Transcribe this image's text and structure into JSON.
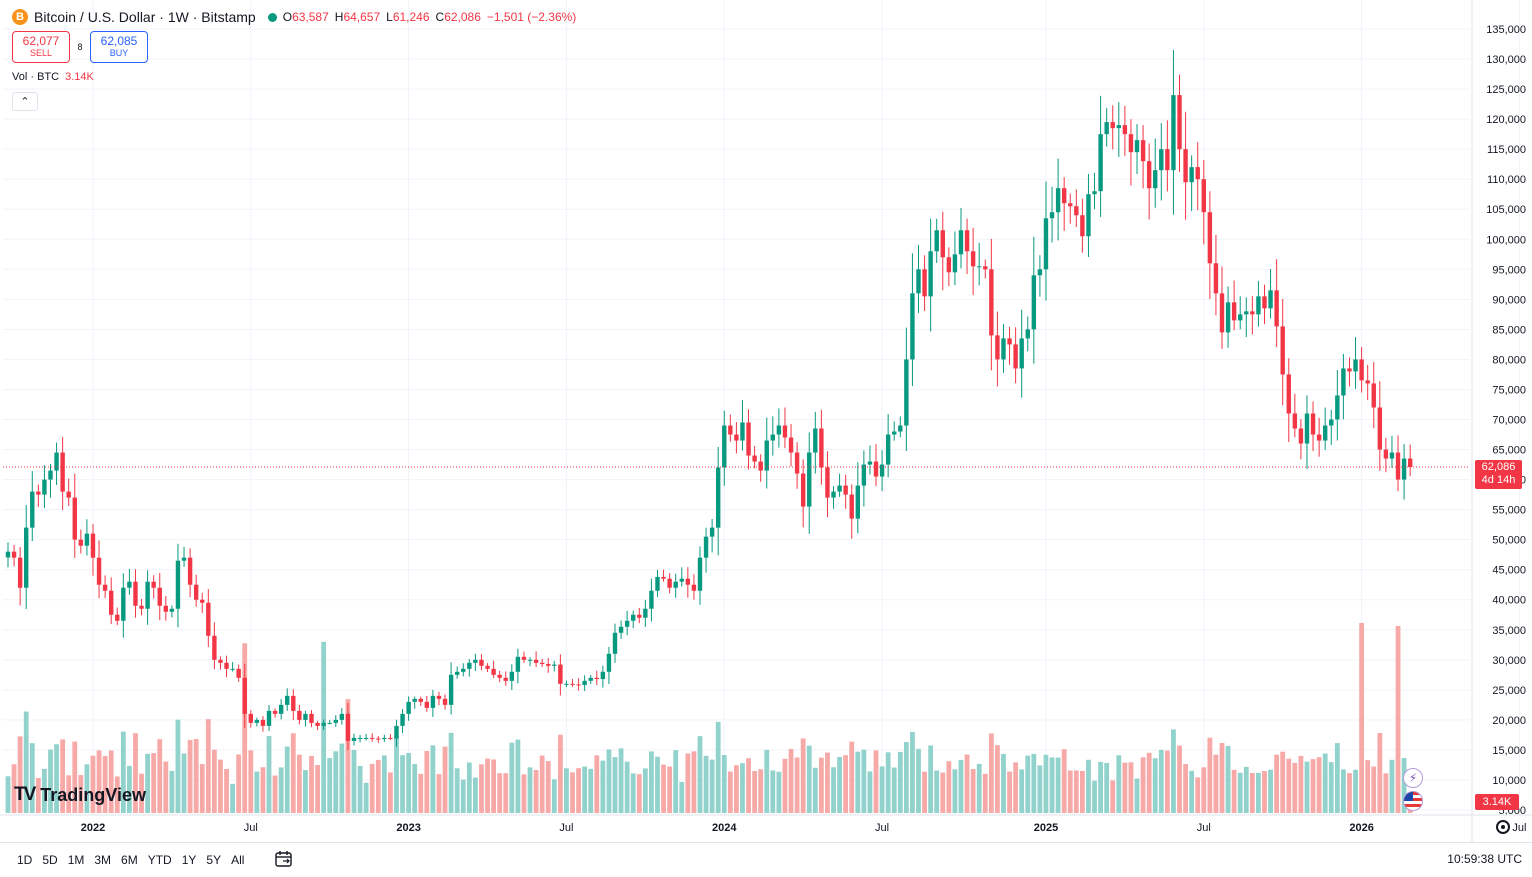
{
  "header": {
    "symbol_icon": "B",
    "title": "Bitcoin / U.S. Dollar · 1W · Bitstamp",
    "ohlc": {
      "o_label": "O",
      "o_value": "63,587",
      "h_label": "H",
      "h_value": "64,657",
      "l_label": "L",
      "l_value": "61,246",
      "c_label": "C",
      "c_value": "62,086",
      "change": "−1,501 (−2.36%)"
    }
  },
  "trade": {
    "sell_price": "62,077",
    "sell_label": "SELL",
    "spread": "8",
    "buy_price": "62,085",
    "buy_label": "BUY"
  },
  "volume_legend": {
    "label": "Vol · BTC",
    "value": "3.14K"
  },
  "logo": {
    "text": "TradingView"
  },
  "price_tag": {
    "price": "62,086",
    "countdown": "4d 14h"
  },
  "volume_tag": "3.14K",
  "toolbar": {
    "ranges": [
      "1D",
      "5D",
      "1M",
      "3M",
      "6M",
      "YTD",
      "1Y",
      "5Y",
      "All"
    ],
    "clock": "10:59:38 UTC"
  },
  "colors": {
    "up": "#089981",
    "down": "#f23645",
    "up_vol": "#92d2cc",
    "down_vol": "#f7a9a7",
    "grid": "#f0f3fa"
  },
  "chart_data": {
    "type": "candlestick",
    "interval": "1W",
    "y_axis": {
      "min": 5000,
      "max": 135000,
      "ticks": [
        "5,000",
        "10,000",
        "15,000",
        "20,000",
        "25,000",
        "30,000",
        "35,000",
        "40,000",
        "45,000",
        "50,000",
        "55,000",
        "60,000",
        "65,000",
        "70,000",
        "75,000",
        "80,000",
        "85,000",
        "90,000",
        "95,000",
        "100,000",
        "105,000",
        "110,000",
        "115,000",
        "120,000",
        "125,000",
        "130,000",
        "135,000"
      ],
      "scale": "linear"
    },
    "x_axis": {
      "ticks": [
        {
          "label": "2022",
          "bold": true,
          "bar": 14
        },
        {
          "label": "Jul",
          "bold": false,
          "bar": 40
        },
        {
          "label": "2023",
          "bold": true,
          "bar": 66
        },
        {
          "label": "Jul",
          "bold": false,
          "bar": 92
        },
        {
          "label": "2024",
          "bold": true,
          "bar": 118
        },
        {
          "label": "Jul",
          "bold": false,
          "bar": 144
        },
        {
          "label": "2025",
          "bold": true,
          "bar": 171
        },
        {
          "label": "Jul",
          "bold": false,
          "bar": 197
        },
        {
          "label": "2026",
          "bold": true,
          "bar": 223
        },
        {
          "label": "Jul",
          "bold": false,
          "bar": 249
        }
      ]
    },
    "last_price": 62086,
    "grid": true,
    "close_path": [
      [
        0,
        48000
      ],
      [
        1,
        47000
      ],
      [
        2,
        42000
      ],
      [
        3,
        52000
      ],
      [
        4,
        58000
      ],
      [
        5,
        57500
      ],
      [
        6,
        60000
      ],
      [
        7,
        61500
      ],
      [
        8,
        64500
      ],
      [
        9,
        58000
      ],
      [
        10,
        57000
      ],
      [
        11,
        50000
      ],
      [
        12,
        49000
      ],
      [
        13,
        51000
      ],
      [
        14,
        47000
      ],
      [
        15,
        42500
      ],
      [
        16,
        41500
      ],
      [
        17,
        37500
      ],
      [
        18,
        36500
      ],
      [
        19,
        42000
      ],
      [
        20,
        43000
      ],
      [
        21,
        39000
      ],
      [
        22,
        38500
      ],
      [
        23,
        43000
      ],
      [
        24,
        42000
      ],
      [
        25,
        39000
      ],
      [
        26,
        38000
      ],
      [
        27,
        38500
      ],
      [
        28,
        46500
      ],
      [
        29,
        47000
      ],
      [
        30,
        42500
      ],
      [
        31,
        40000
      ],
      [
        32,
        39500
      ],
      [
        33,
        34000
      ],
      [
        34,
        30000
      ],
      [
        35,
        29500
      ],
      [
        36,
        28500
      ],
      [
        37,
        28500
      ],
      [
        38,
        27000
      ],
      [
        39,
        21000
      ],
      [
        40,
        19500
      ],
      [
        41,
        20000
      ],
      [
        42,
        19000
      ],
      [
        43,
        21500
      ],
      [
        44,
        21000
      ],
      [
        45,
        22500
      ],
      [
        46,
        24000
      ],
      [
        47,
        21500
      ],
      [
        48,
        20000
      ],
      [
        49,
        21000
      ],
      [
        50,
        19500
      ],
      [
        51,
        19000
      ],
      [
        52,
        19500
      ],
      [
        53,
        19500
      ],
      [
        54,
        20000
      ],
      [
        55,
        21000
      ],
      [
        56,
        16500
      ],
      [
        57,
        17000
      ],
      [
        58,
        17000
      ],
      [
        59,
        17000
      ],
      [
        60,
        16900
      ],
      [
        61,
        16800
      ],
      [
        62,
        17000
      ],
      [
        63,
        16900
      ],
      [
        64,
        19000
      ],
      [
        65,
        21000
      ],
      [
        66,
        23000
      ],
      [
        67,
        23500
      ],
      [
        68,
        23000
      ],
      [
        69,
        22000
      ],
      [
        70,
        24000
      ],
      [
        71,
        23500
      ],
      [
        72,
        22500
      ],
      [
        73,
        27500
      ],
      [
        74,
        28000
      ],
      [
        75,
        28500
      ],
      [
        76,
        29500
      ],
      [
        77,
        30000
      ],
      [
        78,
        29000
      ],
      [
        79,
        28500
      ],
      [
        80,
        27500
      ],
      [
        81,
        27000
      ],
      [
        82,
        26500
      ],
      [
        83,
        28000
      ],
      [
        84,
        30500
      ],
      [
        85,
        30000
      ],
      [
        86,
        30000
      ],
      [
        87,
        29500
      ],
      [
        88,
        29300
      ],
      [
        89,
        29000
      ],
      [
        90,
        29200
      ],
      [
        91,
        26000
      ],
      [
        92,
        26000
      ],
      [
        93,
        25900
      ],
      [
        94,
        25800
      ],
      [
        95,
        26500
      ],
      [
        96,
        27000
      ],
      [
        97,
        26800
      ],
      [
        98,
        28000
      ],
      [
        99,
        31000
      ],
      [
        100,
        34500
      ],
      [
        101,
        35500
      ],
      [
        102,
        36500
      ],
      [
        103,
        37500
      ],
      [
        104,
        37000
      ],
      [
        105,
        38500
      ],
      [
        106,
        41500
      ],
      [
        107,
        43800
      ],
      [
        108,
        43500
      ],
      [
        109,
        42000
      ],
      [
        110,
        43000
      ],
      [
        111,
        43500
      ],
      [
        112,
        42500
      ],
      [
        113,
        41500
      ],
      [
        114,
        47000
      ],
      [
        115,
        50500
      ],
      [
        116,
        52000
      ],
      [
        117,
        62000
      ],
      [
        118,
        69000
      ],
      [
        119,
        67500
      ],
      [
        120,
        66500
      ],
      [
        121,
        69500
      ],
      [
        122,
        64000
      ],
      [
        123,
        63000
      ],
      [
        124,
        61500
      ],
      [
        125,
        66500
      ],
      [
        126,
        67500
      ],
      [
        127,
        69000
      ],
      [
        128,
        67000
      ],
      [
        129,
        64500
      ],
      [
        130,
        61000
      ],
      [
        131,
        55500
      ],
      [
        132,
        64500
      ],
      [
        133,
        68500
      ],
      [
        134,
        62000
      ],
      [
        135,
        57000
      ],
      [
        136,
        58000
      ],
      [
        137,
        59000
      ],
      [
        138,
        57500
      ],
      [
        139,
        53500
      ],
      [
        140,
        59000
      ],
      [
        141,
        62500
      ],
      [
        142,
        63000
      ],
      [
        143,
        60500
      ],
      [
        144,
        62500
      ],
      [
        145,
        67500
      ],
      [
        146,
        68000
      ],
      [
        147,
        69000
      ],
      [
        148,
        80000
      ],
      [
        149,
        91000
      ],
      [
        150,
        95000
      ],
      [
        151,
        90500
      ],
      [
        152,
        98000
      ],
      [
        153,
        101500
      ],
      [
        154,
        97000
      ],
      [
        155,
        94500
      ],
      [
        156,
        97500
      ],
      [
        157,
        101500
      ],
      [
        158,
        98000
      ],
      [
        159,
        95500
      ],
      [
        160,
        95500
      ],
      [
        161,
        95000
      ],
      [
        162,
        84000
      ],
      [
        163,
        80000
      ],
      [
        164,
        83500
      ],
      [
        165,
        82500
      ],
      [
        166,
        78500
      ],
      [
        167,
        83500
      ],
      [
        168,
        85000
      ],
      [
        169,
        94000
      ],
      [
        170,
        95000
      ],
      [
        171,
        103500
      ],
      [
        172,
        104500
      ],
      [
        173,
        108500
      ],
      [
        174,
        106000
      ],
      [
        175,
        105500
      ],
      [
        176,
        104000
      ],
      [
        177,
        100500
      ],
      [
        178,
        107500
      ],
      [
        179,
        108000
      ],
      [
        180,
        117500
      ],
      [
        181,
        119500
      ],
      [
        182,
        118500
      ],
      [
        183,
        119000
      ],
      [
        184,
        117500
      ],
      [
        185,
        114500
      ],
      [
        186,
        116500
      ],
      [
        187,
        113000
      ],
      [
        188,
        108500
      ],
      [
        189,
        111500
      ],
      [
        190,
        115000
      ],
      [
        191,
        111500
      ],
      [
        192,
        124000
      ],
      [
        193,
        115000
      ],
      [
        194,
        109500
      ],
      [
        195,
        112000
      ],
      [
        196,
        110000
      ],
      [
        197,
        104500
      ],
      [
        198,
        96000
      ],
      [
        199,
        91000
      ],
      [
        200,
        84500
      ],
      [
        201,
        89500
      ],
      [
        202,
        86500
      ],
      [
        203,
        87500
      ],
      [
        204,
        88000
      ],
      [
        205,
        87500
      ],
      [
        206,
        90500
      ],
      [
        207,
        88500
      ],
      [
        208,
        91500
      ],
      [
        209,
        85500
      ],
      [
        210,
        77500
      ],
      [
        211,
        71000
      ],
      [
        212,
        68500
      ],
      [
        213,
        66000
      ],
      [
        214,
        71000
      ],
      [
        215,
        67500
      ],
      [
        216,
        66500
      ],
      [
        217,
        69000
      ],
      [
        218,
        70000
      ],
      [
        219,
        74000
      ],
      [
        220,
        78500
      ],
      [
        221,
        78000
      ],
      [
        222,
        80000
      ],
      [
        223,
        76500
      ],
      [
        224,
        76000
      ],
      [
        225,
        72000
      ],
      [
        226,
        65000
      ],
      [
        227,
        63500
      ],
      [
        228,
        64500
      ],
      [
        229,
        60000
      ],
      [
        230,
        63500
      ],
      [
        231,
        62086
      ]
    ],
    "volume": {
      "unit": "BTC",
      "last": "3.14K",
      "notable_spikes": [
        {
          "bar": 39,
          "relative": "high"
        },
        {
          "bar": 52,
          "relative": "high"
        },
        {
          "bar": 223,
          "relative": "max"
        },
        {
          "bar": 229,
          "relative": "high"
        }
      ]
    }
  }
}
